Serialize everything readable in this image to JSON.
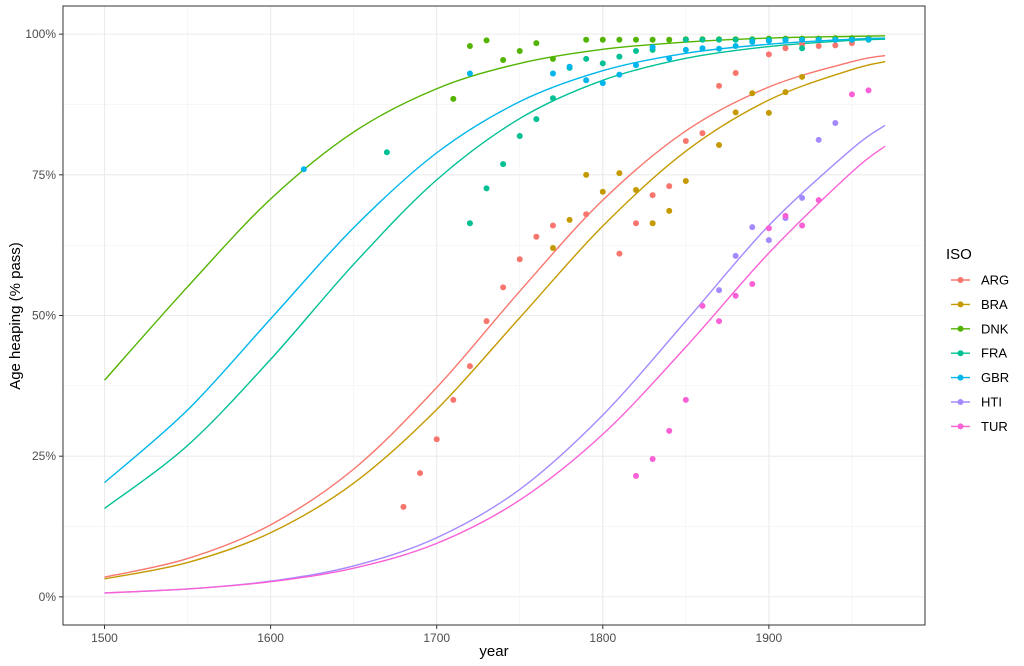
{
  "chart_data": {
    "type": "scatter",
    "xlabel": "year",
    "ylabel": "Age heaping (% pass)",
    "xlim": [
      1475,
      1994
    ],
    "ylim": [
      -5,
      105
    ],
    "x_ticks": [
      1500,
      1600,
      1700,
      1800,
      1900
    ],
    "y_ticks": [
      0,
      25,
      50,
      75,
      100
    ],
    "y_tick_labels": [
      "0%",
      "25%",
      "50%",
      "75%",
      "100%"
    ],
    "grid": true,
    "legend": {
      "title": "ISO",
      "placement": "right"
    },
    "series": [
      {
        "name": "ARG",
        "color": "#F8766D",
        "points": [
          [
            1680,
            16
          ],
          [
            1690,
            22
          ],
          [
            1700,
            28
          ],
          [
            1710,
            35
          ],
          [
            1720,
            41
          ],
          [
            1730,
            49
          ],
          [
            1740,
            55
          ],
          [
            1750,
            60
          ],
          [
            1760,
            64
          ],
          [
            1770,
            66
          ],
          [
            1790,
            68
          ],
          [
            1810,
            61
          ],
          [
            1820,
            66.4
          ],
          [
            1830,
            71.4
          ],
          [
            1840,
            73
          ],
          [
            1850,
            81
          ],
          [
            1860,
            82.4
          ],
          [
            1870,
            90.8
          ],
          [
            1880,
            93.1
          ],
          [
            1900,
            96.4
          ],
          [
            1910,
            97.5
          ],
          [
            1920,
            98.2
          ],
          [
            1930,
            97.9
          ],
          [
            1940,
            98
          ],
          [
            1950,
            98.4
          ]
        ],
        "fit": [
          [
            1500,
            3.5
          ],
          [
            1550,
            6.8
          ],
          [
            1600,
            12.8
          ],
          [
            1650,
            22.7
          ],
          [
            1700,
            37.2
          ],
          [
            1750,
            54.3
          ],
          [
            1800,
            70.5
          ],
          [
            1850,
            82.8
          ],
          [
            1900,
            90.6
          ],
          [
            1950,
            95.1
          ],
          [
            1970,
            96.2
          ]
        ]
      },
      {
        "name": "BRA",
        "color": "#C49A00",
        "points": [
          [
            1770,
            62
          ],
          [
            1780,
            67
          ],
          [
            1790,
            75
          ],
          [
            1800,
            72
          ],
          [
            1810,
            75.3
          ],
          [
            1820,
            72.3
          ],
          [
            1830,
            66.4
          ],
          [
            1840,
            68.6
          ],
          [
            1850,
            73.9
          ],
          [
            1870,
            80.3
          ],
          [
            1880,
            86.1
          ],
          [
            1890,
            89.5
          ],
          [
            1900,
            86
          ],
          [
            1910,
            89.7
          ],
          [
            1920,
            92.4
          ]
        ],
        "fit": [
          [
            1500,
            3.2
          ],
          [
            1550,
            6.1
          ],
          [
            1600,
            11.4
          ],
          [
            1650,
            20.2
          ],
          [
            1700,
            33.3
          ],
          [
            1750,
            49.6
          ],
          [
            1800,
            65.9
          ],
          [
            1850,
            79.2
          ],
          [
            1900,
            88.3
          ],
          [
            1950,
            93.7
          ],
          [
            1970,
            95.1
          ]
        ]
      },
      {
        "name": "DNK",
        "color": "#53B400",
        "points": [
          [
            1710,
            88.5
          ],
          [
            1720,
            97.9
          ],
          [
            1730,
            98.9
          ],
          [
            1740,
            95.4
          ],
          [
            1750,
            97
          ],
          [
            1760,
            98.4
          ],
          [
            1770,
            95.6
          ],
          [
            1790,
            99
          ],
          [
            1800,
            99
          ],
          [
            1810,
            99
          ],
          [
            1820,
            99
          ],
          [
            1830,
            99
          ],
          [
            1840,
            99
          ],
          [
            1850,
            99.1
          ],
          [
            1860,
            99.1
          ],
          [
            1870,
            99.1
          ],
          [
            1880,
            99.1
          ],
          [
            1890,
            99.1
          ],
          [
            1900,
            99.2
          ],
          [
            1910,
            99.2
          ],
          [
            1920,
            99.2
          ],
          [
            1930,
            99.2
          ],
          [
            1940,
            99.3
          ],
          [
            1950,
            99.3
          ],
          [
            1960,
            99.3
          ]
        ],
        "fit": [
          [
            1500,
            38.5
          ],
          [
            1550,
            55.1
          ],
          [
            1600,
            70.7
          ],
          [
            1650,
            82.6
          ],
          [
            1700,
            90.3
          ],
          [
            1750,
            94.8
          ],
          [
            1800,
            97.3
          ],
          [
            1850,
            98.6
          ],
          [
            1900,
            99.3
          ],
          [
            1950,
            99.6
          ],
          [
            1970,
            99.7
          ]
        ]
      },
      {
        "name": "FRA",
        "color": "#00C094",
        "points": [
          [
            1670,
            79
          ],
          [
            1720,
            66.4
          ],
          [
            1730,
            72.6
          ],
          [
            1740,
            76.9
          ],
          [
            1750,
            81.9
          ],
          [
            1760,
            84.9
          ],
          [
            1770,
            88.6
          ],
          [
            1780,
            94
          ],
          [
            1790,
            95.6
          ],
          [
            1800,
            94.8
          ],
          [
            1810,
            96
          ],
          [
            1820,
            97
          ],
          [
            1830,
            97.2
          ],
          [
            1850,
            99
          ],
          [
            1860,
            99
          ],
          [
            1870,
            99
          ],
          [
            1880,
            99
          ],
          [
            1890,
            99
          ],
          [
            1900,
            99
          ],
          [
            1910,
            99
          ],
          [
            1920,
            97.5
          ],
          [
            1930,
            99
          ],
          [
            1940,
            99
          ],
          [
            1950,
            99
          ],
          [
            1960,
            99
          ]
        ],
        "fit": [
          [
            1500,
            15.7
          ],
          [
            1550,
            26.9
          ],
          [
            1600,
            42.2
          ],
          [
            1650,
            59.1
          ],
          [
            1700,
            74.1
          ],
          [
            1750,
            85.0
          ],
          [
            1800,
            91.8
          ],
          [
            1850,
            95.7
          ],
          [
            1900,
            97.8
          ],
          [
            1950,
            98.9
          ],
          [
            1970,
            99.1
          ]
        ]
      },
      {
        "name": "GBR",
        "color": "#00B6EB",
        "points": [
          [
            1620,
            76
          ],
          [
            1720,
            93
          ],
          [
            1770,
            93
          ],
          [
            1780,
            94.2
          ],
          [
            1790,
            91.8
          ],
          [
            1800,
            91.3
          ],
          [
            1810,
            92.8
          ],
          [
            1820,
            94.5
          ],
          [
            1830,
            97.7
          ],
          [
            1840,
            95.7
          ],
          [
            1850,
            97.2
          ],
          [
            1860,
            97.5
          ],
          [
            1870,
            97.4
          ],
          [
            1880,
            97.9
          ],
          [
            1890,
            98.6
          ],
          [
            1900,
            98.8
          ],
          [
            1910,
            98.9
          ],
          [
            1920,
            99
          ],
          [
            1930,
            99
          ],
          [
            1940,
            99
          ],
          [
            1950,
            99
          ],
          [
            1960,
            99.1
          ]
        ],
        "fit": [
          [
            1500,
            20.3
          ],
          [
            1550,
            33.2
          ],
          [
            1600,
            49.4
          ],
          [
            1650,
            65.6
          ],
          [
            1700,
            78.9
          ],
          [
            1750,
            88.0
          ],
          [
            1800,
            93.5
          ],
          [
            1850,
            96.6
          ],
          [
            1900,
            98.2
          ],
          [
            1950,
            99.1
          ],
          [
            1970,
            99.3
          ]
        ]
      },
      {
        "name": "HTI",
        "color": "#A58AFF",
        "points": [
          [
            1870,
            54.5
          ],
          [
            1880,
            60.6
          ],
          [
            1890,
            65.7
          ],
          [
            1900,
            63.4
          ],
          [
            1910,
            67.3
          ],
          [
            1920,
            70.9
          ],
          [
            1930,
            81.2
          ],
          [
            1940,
            84.2
          ]
        ],
        "fit": [
          [
            1500,
            0.7
          ],
          [
            1550,
            1.4
          ],
          [
            1600,
            2.8
          ],
          [
            1650,
            5.5
          ],
          [
            1700,
            10.5
          ],
          [
            1750,
            19.1
          ],
          [
            1800,
            32.3
          ],
          [
            1850,
            49.0
          ],
          [
            1900,
            66.0
          ],
          [
            1950,
            79.6
          ],
          [
            1970,
            83.8
          ]
        ]
      },
      {
        "name": "TUR",
        "color": "#FB61D7",
        "points": [
          [
            1820,
            21.5
          ],
          [
            1830,
            24.5
          ],
          [
            1840,
            29.5
          ],
          [
            1850,
            35
          ],
          [
            1860,
            51.7
          ],
          [
            1870,
            49
          ],
          [
            1880,
            53.5
          ],
          [
            1890,
            55.6
          ],
          [
            1900,
            65.5
          ],
          [
            1910,
            67.7
          ],
          [
            1920,
            66
          ],
          [
            1930,
            70.5
          ],
          [
            1950,
            89.3
          ],
          [
            1960,
            90
          ]
        ],
        "fit": [
          [
            1500,
            0.7
          ],
          [
            1550,
            1.4
          ],
          [
            1600,
            2.7
          ],
          [
            1650,
            5.1
          ],
          [
            1700,
            9.5
          ],
          [
            1750,
            17.2
          ],
          [
            1800,
            28.9
          ],
          [
            1850,
            44.4
          ],
          [
            1900,
            61.1
          ],
          [
            1950,
            75.5
          ],
          [
            1970,
            80.1
          ]
        ]
      }
    ]
  }
}
